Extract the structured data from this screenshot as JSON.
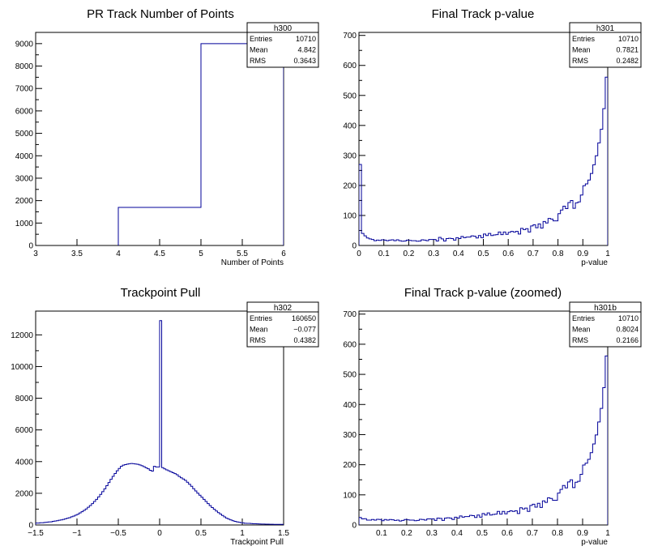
{
  "colors": {
    "line": "#000099",
    "frame": "#000000",
    "background": "#ffffff"
  },
  "chart_data": [
    {
      "type": "histogram",
      "title": "PR Track Number of Points",
      "xlabel": "Number of Points",
      "xlim": [
        3,
        6
      ],
      "ylim": [
        0,
        9500
      ],
      "xticks": [
        "3",
        "3.5",
        "4",
        "4.5",
        "5",
        "5.5",
        "6"
      ],
      "yticks": [
        "0",
        "1000",
        "2000",
        "3000",
        "4000",
        "5000",
        "6000",
        "7000",
        "8000",
        "9000"
      ],
      "bins": [
        [
          4,
          5,
          1700
        ],
        [
          5,
          6,
          9000
        ]
      ],
      "stats": {
        "name": "h300",
        "entries": "10710",
        "mean": "4.842",
        "rms": "0.3643"
      }
    },
    {
      "type": "histogram",
      "title": "Final Track p-value",
      "xlabel": "p-value",
      "xlim": [
        0,
        1
      ],
      "ylim": [
        0,
        710
      ],
      "xticks": [
        "0",
        "0.1",
        "0.2",
        "0.3",
        "0.4",
        "0.5",
        "0.6",
        "0.7",
        "0.8",
        "0.9",
        "1"
      ],
      "yticks": [
        "0",
        "100",
        "200",
        "300",
        "400",
        "500",
        "600",
        "700"
      ],
      "bin_start": 0,
      "bin_width": 0.01,
      "values": [
        270,
        40,
        32,
        25,
        22,
        20,
        16,
        18,
        17,
        19,
        18,
        16,
        18,
        19,
        16,
        19,
        16,
        14,
        15,
        18,
        17,
        16,
        16,
        14,
        15,
        19,
        18,
        16,
        20,
        20,
        20,
        15,
        27,
        22,
        15,
        23,
        24,
        23,
        18,
        26,
        23,
        30,
        26,
        28,
        28,
        32,
        31,
        25,
        33,
        26,
        38,
        33,
        40,
        33,
        35,
        36,
        45,
        36,
        45,
        37,
        44,
        47,
        45,
        47,
        38,
        57,
        53,
        56,
        45,
        65,
        69,
        59,
        72,
        58,
        80,
        75,
        90,
        88,
        82,
        82,
        106,
        118,
        131,
        123,
        143,
        150,
        124,
        142,
        145,
        168,
        199,
        205,
        218,
        240,
        269,
        299,
        342,
        387,
        456,
        561
      ],
      "stats": {
        "name": "h301",
        "entries": "10710",
        "mean": "0.7821",
        "rms": "0.2482"
      }
    },
    {
      "type": "histogram",
      "title": "Trackpoint Pull",
      "xlabel": "Trackpoint Pull",
      "xlim": [
        -1.5,
        1.5
      ],
      "ylim": [
        0,
        13500
      ],
      "xticks": [
        "−1.5",
        "−1",
        "−0.5",
        "0",
        "0.5",
        "1",
        "1.5"
      ],
      "yticks": [
        "0",
        "2000",
        "4000",
        "6000",
        "8000",
        "10000",
        "12000"
      ],
      "bin_start": -1.5,
      "bin_width": 0.025,
      "values": [
        120,
        120,
        140,
        140,
        160,
        170,
        190,
        200,
        230,
        250,
        270,
        300,
        320,
        350,
        390,
        430,
        460,
        520,
        560,
        620,
        680,
        760,
        840,
        920,
        1010,
        1120,
        1230,
        1350,
        1480,
        1620,
        1770,
        1930,
        2100,
        2280,
        2480,
        2680,
        2880,
        3070,
        3250,
        3420,
        3570,
        3700,
        3780,
        3810,
        3840,
        3870,
        3880,
        3870,
        3850,
        3830,
        3790,
        3740,
        3680,
        3610,
        3550,
        3450,
        3400,
        3700,
        3660,
        3660,
        12900,
        3620,
        3540,
        3480,
        3420,
        3360,
        3300,
        3240,
        3170,
        3060,
        2980,
        2900,
        2820,
        2700,
        2570,
        2440,
        2290,
        2150,
        2010,
        1880,
        1750,
        1620,
        1480,
        1350,
        1220,
        1100,
        990,
        880,
        780,
        690,
        600,
        510,
        430,
        370,
        320,
        270,
        230,
        200,
        170,
        150,
        130,
        110,
        100,
        100,
        90,
        80,
        75,
        70,
        65,
        60,
        55,
        50,
        50,
        45,
        45,
        40,
        40,
        40,
        40,
        40,
        40,
        40
      ],
      "stats": {
        "name": "h302",
        "entries": "160650",
        "mean": "−0.077",
        "rms": "0.4382"
      }
    },
    {
      "type": "histogram",
      "title": "Final Track p-value (zoomed)",
      "xlabel": "p-value",
      "xlim": [
        0.01,
        1
      ],
      "ylim": [
        0,
        710
      ],
      "xticks": [
        "0.1",
        "0.2",
        "0.3",
        "0.4",
        "0.5",
        "0.6",
        "0.7",
        "0.8",
        "0.9",
        "1"
      ],
      "yticks": [
        "0",
        "100",
        "200",
        "300",
        "400",
        "500",
        "600",
        "700"
      ],
      "bin_start": 0.01,
      "bin_width": 0.01,
      "values": [
        25,
        20,
        21,
        16,
        16,
        18,
        16,
        19,
        18,
        14,
        18,
        16,
        18,
        17,
        15,
        16,
        13,
        15,
        18,
        17,
        16,
        16,
        14,
        15,
        19,
        18,
        16,
        20,
        20,
        20,
        15,
        23,
        22,
        15,
        23,
        24,
        23,
        18,
        26,
        23,
        30,
        26,
        28,
        28,
        32,
        31,
        25,
        33,
        26,
        38,
        33,
        40,
        33,
        35,
        36,
        45,
        36,
        45,
        37,
        44,
        47,
        45,
        47,
        38,
        57,
        53,
        56,
        45,
        65,
        69,
        59,
        72,
        58,
        80,
        75,
        90,
        88,
        82,
        82,
        106,
        118,
        131,
        123,
        143,
        150,
        124,
        142,
        145,
        168,
        199,
        205,
        218,
        240,
        269,
        299,
        342,
        387,
        456,
        561
      ],
      "stats": {
        "name": "h301b",
        "entries": "10710",
        "mean": "0.8024",
        "rms": "0.2166"
      }
    }
  ],
  "labels": {
    "entries": "Entries",
    "mean": "Mean",
    "rms": "RMS"
  }
}
